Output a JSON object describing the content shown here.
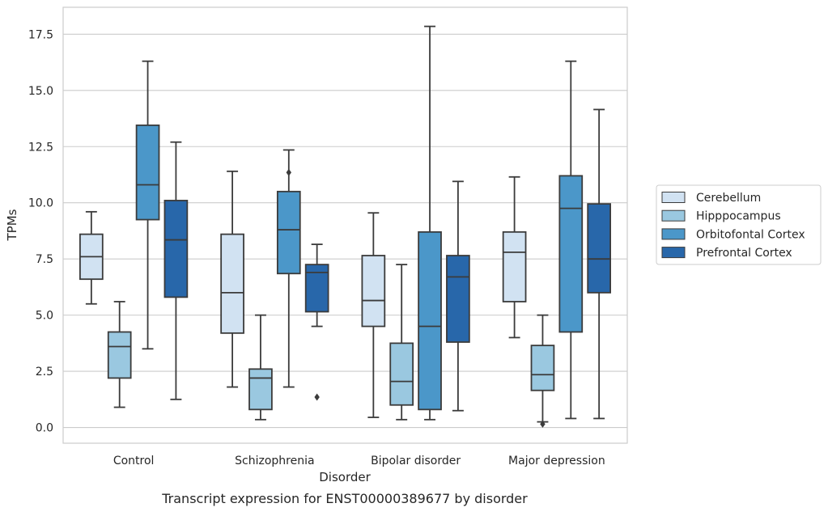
{
  "caption": "Transcript expression for ENST00000389677 by disorder",
  "chart_data": {
    "type": "box",
    "xlabel": "Disorder",
    "ylabel": "TPMs",
    "ylim": [
      -0.7,
      18.7
    ],
    "yticks": [
      "0.0",
      "2.5",
      "5.0",
      "7.5",
      "10.0",
      "12.5",
      "15.0",
      "17.5"
    ],
    "grid": true,
    "legend_position": "right",
    "categories": [
      "Control",
      "Schizophrenia",
      "Bipolar disorder",
      "Major depression"
    ],
    "series": [
      {
        "name": "Cerebellum",
        "color": "#d1e2f2",
        "boxes": [
          {
            "whislo": 5.5,
            "q1": 6.6,
            "med": 7.6,
            "q3": 8.6,
            "whishi": 9.6,
            "fliers": []
          },
          {
            "whislo": 1.8,
            "q1": 4.2,
            "med": 6.0,
            "q3": 8.6,
            "whishi": 11.4,
            "fliers": []
          },
          {
            "whislo": 0.45,
            "q1": 4.5,
            "med": 5.65,
            "q3": 7.65,
            "whishi": 9.55,
            "fliers": []
          },
          {
            "whislo": 4.0,
            "q1": 5.6,
            "med": 7.8,
            "q3": 8.7,
            "whishi": 11.15,
            "fliers": []
          }
        ]
      },
      {
        "name": "Hipppocampus",
        "color": "#9ac8e0",
        "boxes": [
          {
            "whislo": 0.9,
            "q1": 2.2,
            "med": 3.6,
            "q3": 4.25,
            "whishi": 5.6,
            "fliers": []
          },
          {
            "whislo": 0.35,
            "q1": 0.8,
            "med": 2.2,
            "q3": 2.6,
            "whishi": 5.0,
            "fliers": []
          },
          {
            "whislo": 0.35,
            "q1": 1.0,
            "med": 2.05,
            "q3": 3.75,
            "whishi": 7.25,
            "fliers": []
          },
          {
            "whislo": 0.25,
            "q1": 1.65,
            "med": 2.35,
            "q3": 3.65,
            "whishi": 5.0,
            "fliers": [
              0.15
            ]
          }
        ]
      },
      {
        "name": "Orbitofontal Cortex",
        "color": "#4b97c9",
        "boxes": [
          {
            "whislo": 3.5,
            "q1": 9.25,
            "med": 10.8,
            "q3": 13.45,
            "whishi": 16.3,
            "fliers": []
          },
          {
            "whislo": 1.8,
            "q1": 6.85,
            "med": 8.8,
            "q3": 10.5,
            "whishi": 12.35,
            "fliers": [
              11.35
            ]
          },
          {
            "whislo": 0.35,
            "q1": 0.8,
            "med": 4.5,
            "q3": 8.7,
            "whishi": 17.85,
            "fliers": []
          },
          {
            "whislo": 0.4,
            "q1": 4.25,
            "med": 9.75,
            "q3": 11.2,
            "whishi": 16.3,
            "fliers": []
          }
        ]
      },
      {
        "name": "Prefrontal Cortex",
        "color": "#2867aa",
        "boxes": [
          {
            "whislo": 1.25,
            "q1": 5.8,
            "med": 8.35,
            "q3": 10.1,
            "whishi": 12.7,
            "fliers": []
          },
          {
            "whislo": 4.5,
            "q1": 5.15,
            "med": 6.9,
            "q3": 7.25,
            "whishi": 8.15,
            "fliers": [
              1.35
            ]
          },
          {
            "whislo": 0.75,
            "q1": 3.8,
            "med": 6.7,
            "q3": 7.65,
            "whishi": 10.95,
            "fliers": []
          },
          {
            "whislo": 0.4,
            "q1": 6.0,
            "med": 7.5,
            "q3": 9.95,
            "whishi": 14.15,
            "fliers": []
          }
        ]
      }
    ]
  }
}
